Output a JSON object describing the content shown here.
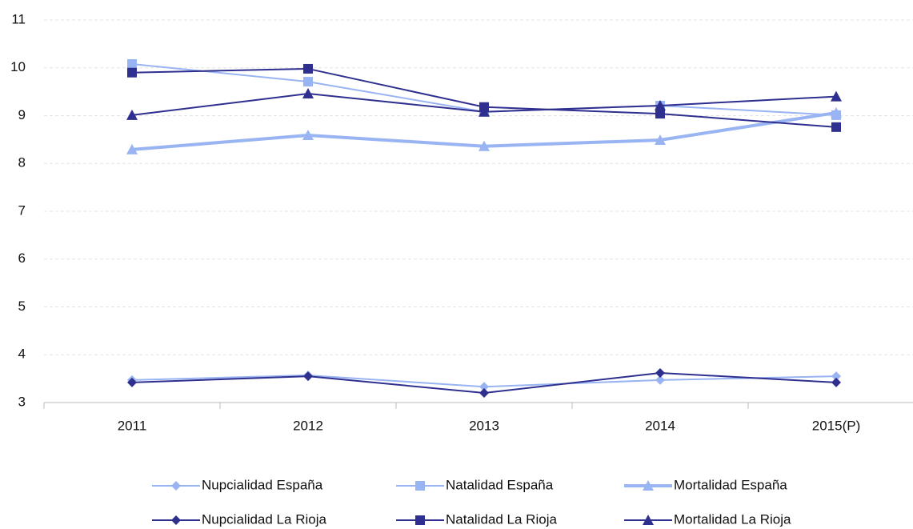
{
  "chart_data": {
    "type": "line",
    "categories": [
      "2011",
      "2012",
      "2013",
      "2014",
      "2015(P)"
    ],
    "ylim": [
      3,
      11
    ],
    "yticks": [
      3,
      4,
      5,
      6,
      7,
      8,
      9,
      10,
      11
    ],
    "grid": true,
    "legend": "bottom",
    "series": [
      {
        "name": "Nupcialidad España",
        "color": "#99b4f2",
        "marker": "diamond",
        "linewidth": 2,
        "values": [
          3.47,
          3.57,
          3.33,
          3.47,
          3.55
        ]
      },
      {
        "name": "Natalidad España",
        "color": "#99b4f2",
        "marker": "square",
        "linewidth": 2,
        "values": [
          10.08,
          9.71,
          9.08,
          9.21,
          9.01
        ]
      },
      {
        "name": "Mortalidad España",
        "color": "#99b4f2",
        "marker": "triangle",
        "linewidth": 4,
        "values": [
          8.29,
          8.59,
          8.36,
          8.49,
          9.06
        ]
      },
      {
        "name": "Nupcialidad La Rioja",
        "color": "#2f2f8f",
        "marker": "diamond",
        "linewidth": 2,
        "values": [
          3.42,
          3.55,
          3.2,
          3.62,
          3.42
        ]
      },
      {
        "name": "Natalidad La Rioja",
        "color": "#2f2f8f",
        "marker": "square",
        "linewidth": 2,
        "values": [
          9.9,
          9.98,
          9.18,
          9.04,
          8.76
        ]
      },
      {
        "name": "Mortalidad La Rioja",
        "color": "#2f2f8f",
        "marker": "triangle",
        "linewidth": 2,
        "values": [
          9.01,
          9.46,
          9.08,
          9.21,
          9.4
        ]
      }
    ]
  }
}
